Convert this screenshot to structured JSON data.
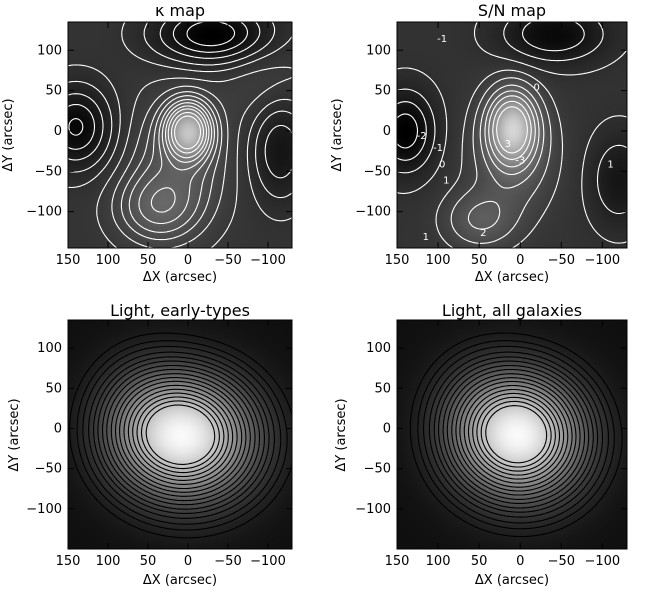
{
  "chart_data": [
    {
      "type": "heatmap",
      "title": "κ map",
      "xlabel": "ΔX (arcsec)",
      "ylabel": "ΔY (arcsec)",
      "xlim": [
        150,
        -130
      ],
      "ylim": [
        -145,
        135
      ],
      "xticks": [
        150,
        100,
        50,
        0,
        -50,
        -100
      ],
      "yticks": [
        100,
        50,
        0,
        -50,
        -100
      ],
      "colormap": "grayscale, dark = high",
      "contour_color": "white",
      "contour_labels": [],
      "peaks": [
        {
          "x": 0,
          "y": 0,
          "amp": -3.0,
          "sx": 18,
          "sy": 22
        },
        {
          "x": 10,
          "y": -35,
          "amp": -0.8,
          "sx": 40,
          "sy": 55
        },
        {
          "x": 40,
          "y": -95,
          "amp": -0.9,
          "sx": 35,
          "sy": 30
        },
        {
          "x": -30,
          "y": 120,
          "amp": 1.3,
          "sx": 50,
          "sy": 25
        },
        {
          "x": 140,
          "y": 5,
          "amp": 1.1,
          "sx": 30,
          "sy": 35
        },
        {
          "x": -115,
          "y": -20,
          "amp": 0.8,
          "sx": 25,
          "sy": 45
        },
        {
          "x": -100,
          "y": 60,
          "amp": -0.3,
          "sx": 40,
          "sy": 40
        }
      ]
    },
    {
      "type": "heatmap",
      "title": "S/N map",
      "xlabel": "ΔX (arcsec)",
      "ylabel": "ΔY (arcsec)",
      "xlim": [
        150,
        -130
      ],
      "ylim": [
        -145,
        135
      ],
      "xticks": [
        150,
        100,
        50,
        0,
        -50,
        -100
      ],
      "yticks": [
        100,
        50,
        0,
        -50,
        -100
      ],
      "colormap": "grayscale, dark = high",
      "contour_color": "white",
      "contour_labels": [
        {
          "text": "-1",
          "x": 95,
          "y": 110
        },
        {
          "text": "0",
          "x": -20,
          "y": 50
        },
        {
          "text": "-2",
          "x": 120,
          "y": -10
        },
        {
          "text": "-1",
          "x": 100,
          "y": -25
        },
        {
          "text": "0",
          "x": 95,
          "y": -45
        },
        {
          "text": "1",
          "x": 90,
          "y": -65
        },
        {
          "text": "3",
          "x": 15,
          "y": -20
        },
        {
          "text": "-3",
          "x": 0,
          "y": -40
        },
        {
          "text": "1",
          "x": -110,
          "y": -45
        },
        {
          "text": "2",
          "x": 45,
          "y": -130
        },
        {
          "text": "1",
          "x": 115,
          "y": -135
        }
      ],
      "peaks": [
        {
          "x": 10,
          "y": 5,
          "amp": -3.2,
          "sx": 20,
          "sy": 30
        },
        {
          "x": 10,
          "y": -30,
          "amp": -0.9,
          "sx": 35,
          "sy": 50
        },
        {
          "x": 50,
          "y": -110,
          "amp": -0.9,
          "sx": 30,
          "sy": 25
        },
        {
          "x": -40,
          "y": 120,
          "amp": 1.0,
          "sx": 45,
          "sy": 25
        },
        {
          "x": 140,
          "y": 0,
          "amp": 1.2,
          "sx": 25,
          "sy": 35
        },
        {
          "x": -120,
          "y": -60,
          "amp": 0.7,
          "sx": 25,
          "sy": 40
        }
      ]
    },
    {
      "type": "heatmap",
      "title": "Light, early-types",
      "xlabel": "ΔX (arcsec)",
      "ylabel": "ΔY (arcsec)",
      "xlim": [
        150,
        -130
      ],
      "ylim": [
        -150,
        135
      ],
      "xticks": [
        150,
        100,
        50,
        0,
        -50,
        -100
      ],
      "yticks": [
        100,
        50,
        0,
        -50,
        -100
      ],
      "colormap": "grayscale, bright = high",
      "contour_color": "black",
      "contour_labels": [],
      "peaks": [
        {
          "x": 5,
          "y": -5,
          "amp": 1.0,
          "sx": 55,
          "sy": 50
        },
        {
          "x": -10,
          "y": -25,
          "amp": 0.35,
          "sx": 60,
          "sy": 55
        },
        {
          "x": 60,
          "y": 10,
          "amp": 0.25,
          "sx": 45,
          "sy": 55
        }
      ]
    },
    {
      "type": "heatmap",
      "title": "Light, all galaxies",
      "xlabel": "ΔX (arcsec)",
      "ylabel": "ΔY (arcsec)",
      "xlim": [
        150,
        -130
      ],
      "ylim": [
        -150,
        135
      ],
      "xticks": [
        150,
        100,
        50,
        0,
        -50,
        -100
      ],
      "yticks": [
        100,
        50,
        0,
        -50,
        -100
      ],
      "colormap": "grayscale, bright = high",
      "contour_color": "black",
      "contour_labels": [],
      "peaks": [
        {
          "x": 0,
          "y": -5,
          "amp": 1.0,
          "sx": 50,
          "sy": 50
        },
        {
          "x": -10,
          "y": -25,
          "amp": 0.3,
          "sx": 55,
          "sy": 55
        },
        {
          "x": 50,
          "y": 10,
          "amp": 0.25,
          "sx": 45,
          "sy": 55
        }
      ]
    }
  ]
}
